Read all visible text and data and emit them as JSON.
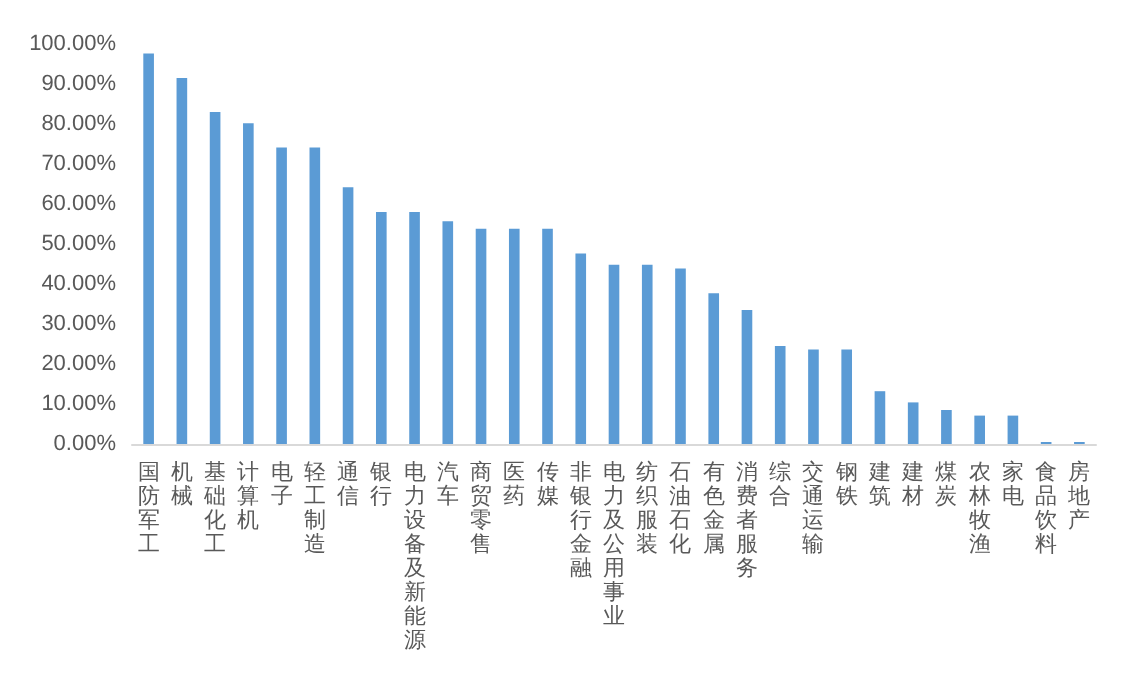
{
  "chart_data": {
    "type": "bar",
    "categories": [
      "国防军工",
      "机械",
      "基础化工",
      "计算机",
      "电子",
      "轻工制造",
      "通信",
      "银行",
      "电力设备及新能源",
      "汽车",
      "商贸零售",
      "医药",
      "传媒",
      "非银行金融",
      "电力及公用事业",
      "纺织服装",
      "石油石化",
      "有色金属",
      "消费者服务",
      "综合",
      "交通运输",
      "钢铁",
      "建筑",
      "建材",
      "煤炭",
      "农林牧渔",
      "家电",
      "食品饮料",
      "房地产"
    ],
    "values": [
      97.6,
      91.5,
      83.0,
      80.2,
      74.1,
      74.1,
      64.2,
      58.0,
      58.0,
      55.7,
      53.8,
      53.8,
      53.8,
      47.6,
      44.8,
      44.8,
      43.9,
      37.7,
      33.5,
      24.5,
      23.6,
      23.6,
      13.2,
      10.4,
      8.5,
      7.1,
      7.1,
      0.5,
      0.5
    ],
    "color": "#5b9bd5",
    "ylim": [
      0,
      100
    ],
    "yticks": [
      {
        "value": 0,
        "label": "0.00%"
      },
      {
        "value": 10,
        "label": "10.00%"
      },
      {
        "value": 20,
        "label": "20.00%"
      },
      {
        "value": 30,
        "label": "30.00%"
      },
      {
        "value": 40,
        "label": "40.00%"
      },
      {
        "value": 50,
        "label": "50.00%"
      },
      {
        "value": 60,
        "label": "60.00%"
      },
      {
        "value": 70,
        "label": "70.00%"
      },
      {
        "value": 80,
        "label": "80.00%"
      },
      {
        "value": 90,
        "label": "90.00%"
      },
      {
        "value": 100,
        "label": "100.00%"
      }
    ],
    "grid": false
  }
}
